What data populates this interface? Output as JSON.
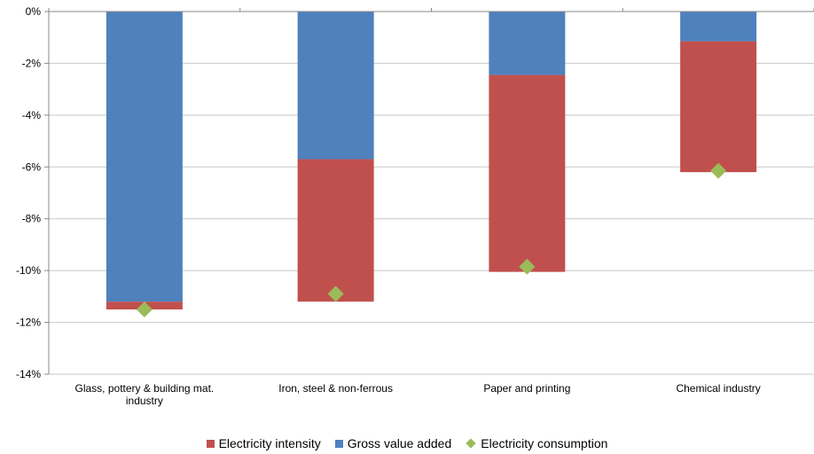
{
  "chart_data": {
    "type": "bar",
    "stacked": true,
    "title": "",
    "xlabel": "",
    "ylabel": "",
    "ylim": [
      -14,
      0
    ],
    "y_ticks": [
      "0%",
      "-2%",
      "-4%",
      "-6%",
      "-8%",
      "-10%",
      "-12%",
      "-14%"
    ],
    "y_tick_values": [
      0,
      -2,
      -4,
      -6,
      -8,
      -10,
      -12,
      -14
    ],
    "grid": true,
    "legend_position": "bottom",
    "categories": [
      [
        "Glass, pottery & building mat.",
        "industry"
      ],
      [
        "Iron, steel & non-ferrous"
      ],
      [
        "Paper and printing"
      ],
      [
        "Chemical industry"
      ]
    ],
    "series": [
      {
        "name": "Gross value added",
        "kind": "bar",
        "color": "#4f81bd",
        "values": [
          -11.2,
          -5.7,
          -2.45,
          -1.15
        ]
      },
      {
        "name": "Electricity intensity",
        "kind": "bar",
        "color": "#c0504d",
        "values": [
          -0.3,
          -5.5,
          -7.6,
          -5.05
        ]
      },
      {
        "name": "Electricity consumption",
        "kind": "marker",
        "color": "#9bbb59",
        "values": [
          -11.5,
          -10.9,
          -9.85,
          -6.15
        ]
      }
    ],
    "legend": [
      "Electricity intensity",
      "Gross value added",
      "Electricity consumption"
    ]
  }
}
